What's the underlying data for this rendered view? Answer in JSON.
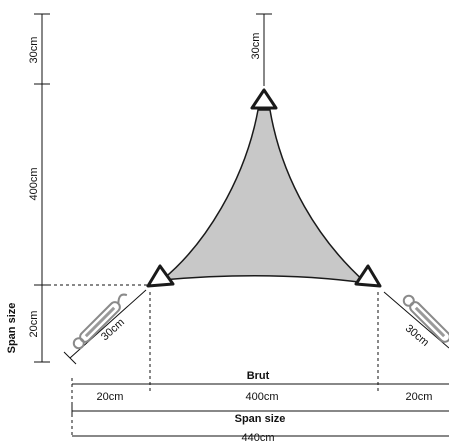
{
  "colors": {
    "sail_fill": "#c8c8c8",
    "sail_stroke": "#1a1a1a",
    "line": "#111111",
    "hardware": "#9a9a9a"
  },
  "icons": [
    "corner-ring-icon",
    "turnbuckle-icon"
  ],
  "labels": {
    "top_vertical_left": "30cm",
    "top_vertical_center": "30cm",
    "height_main": "400cm",
    "left_vertical_20": "20cm",
    "span_size_vertical": "Span size",
    "diag_left": "30cm",
    "diag_right": "30cm",
    "brut": "Brut",
    "bottom_left_20": "20cm",
    "bottom_400": "400cm",
    "bottom_right_20": "20cm",
    "span_size_horizontal": "Span size",
    "total_440": "440cm"
  }
}
